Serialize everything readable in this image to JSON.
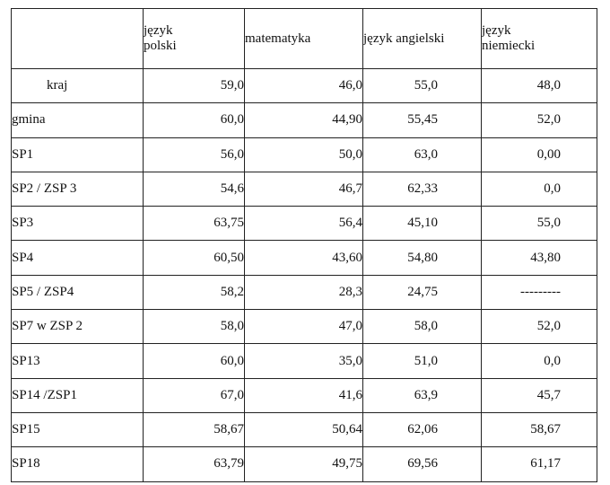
{
  "table": {
    "headers": [
      "",
      "język\npolski",
      "matematyka",
      "język angielski",
      "język\nniemiecki"
    ],
    "rows": [
      {
        "label": "kraj",
        "values": [
          "59,0",
          "46,0",
          "55,0",
          "48,0"
        ]
      },
      {
        "label": "gmina",
        "values": [
          "60,0",
          "44,90",
          "55,45",
          "52,0"
        ]
      },
      {
        "label": "SP1",
        "values": [
          "56,0",
          "50,0",
          "63,0",
          "0,00"
        ]
      },
      {
        "label": "SP2 / ZSP 3",
        "values": [
          "54,6",
          "46,7",
          "62,33",
          "0,0"
        ]
      },
      {
        "label": "SP3",
        "values": [
          "63,75",
          "56,4",
          "45,10",
          "55,0"
        ]
      },
      {
        "label": "SP4",
        "values": [
          "60,50",
          "43,60",
          "54,80",
          "43,80"
        ]
      },
      {
        "label": "SP5 / ZSP4",
        "values": [
          "58,2",
          "28,3",
          "24,75",
          "---------"
        ]
      },
      {
        "label": "SP7 w ZSP 2",
        "values": [
          "58,0",
          "47,0",
          "58,0",
          "52,0"
        ]
      },
      {
        "label": "SP13",
        "values": [
          "60,0",
          "35,0",
          "51,0",
          "0,0"
        ]
      },
      {
        "label": "SP14 /ZSP1",
        "values": [
          "67,0",
          "41,6",
          "63,9",
          "45,7"
        ]
      },
      {
        "label": "SP15",
        "values": [
          "58,67",
          "50,64",
          "62,06",
          "58,67"
        ]
      },
      {
        "label": "SP18",
        "values": [
          "63,79",
          "49,75",
          "69,56",
          "61,17"
        ]
      }
    ]
  }
}
